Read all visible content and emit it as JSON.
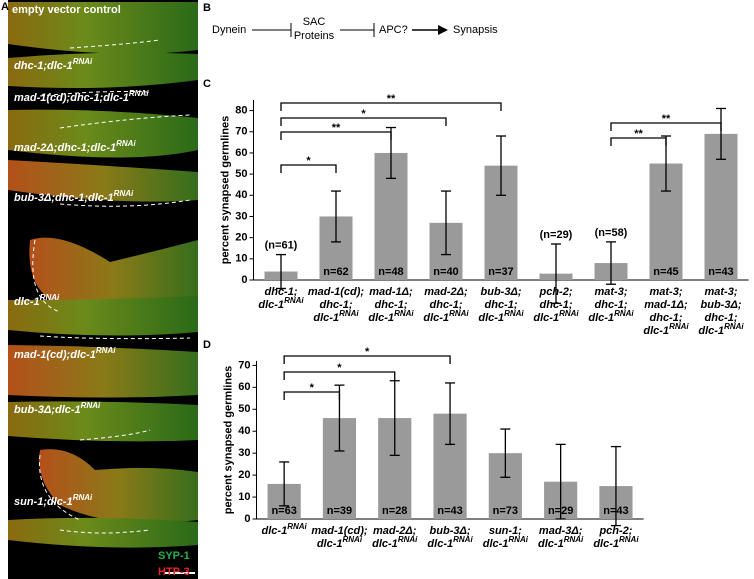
{
  "panel_a": {
    "letter": "A",
    "labels": [
      {
        "text": "empty vector control",
        "sup": ""
      },
      {
        "text": "dhc-1;dlc-1",
        "sup": "RNAi"
      },
      {
        "text": "mad-1(cd);dhc-1;dlc-1",
        "sup": "RNAi"
      },
      {
        "text": "mad-2Δ;dhc-1;dlc-1",
        "sup": "RNAi"
      },
      {
        "text": "bub-3Δ;dhc-1;dlc-1",
        "sup": "RNAi"
      },
      {
        "text": "dlc-1",
        "sup": "RNAi"
      },
      {
        "text": "mad-1(cd);dlc-1",
        "sup": "RNAi"
      },
      {
        "text": "bub-3Δ;dlc-1",
        "sup": "RNAi"
      },
      {
        "text": "sun-1;dlc-1",
        "sup": "RNAi"
      }
    ],
    "legend": [
      {
        "text": "SYP-1",
        "color": "#22b24c"
      },
      {
        "text": "HTP-3",
        "color": "#e8262a"
      }
    ]
  },
  "panel_b": {
    "letter": "B",
    "nodes": [
      "Dynein",
      "SAC",
      "Proteins",
      "APC?",
      "Synapsis"
    ]
  },
  "chart_data": [
    {
      "type": "bar",
      "letter": "C",
      "y_label": "percent synapsed germlines",
      "color": "#9a9a9a",
      "categories": [
        {
          "lines": [
            "dhc-1;",
            "dlc-1"
          ],
          "sup": "RNAi"
        },
        {
          "lines": [
            "mad-1(cd);",
            "dhc-1;",
            "dlc-1"
          ],
          "sup": "RNAi"
        },
        {
          "lines": [
            "mad-1Δ;",
            "dhc-1;",
            "dlc-1"
          ],
          "sup": "RNAi"
        },
        {
          "lines": [
            "mad-2Δ;",
            "dhc-1;",
            "dlc-1"
          ],
          "sup": "RNAi"
        },
        {
          "lines": [
            "bub-3Δ;",
            "dhc-1;",
            "dlc-1"
          ],
          "sup": "RNAi"
        },
        {
          "lines": [
            "pch-2;",
            "dhc-1;",
            "dlc-1"
          ],
          "sup": "RNAi"
        },
        {
          "lines": [
            "mat-3;",
            "dhc-1;",
            "dlc-1"
          ],
          "sup": "RNAi"
        },
        {
          "lines": [
            "mat-3;",
            "mad-1Δ;",
            "dhc-1;",
            "dlc-1"
          ],
          "sup": "RNAi"
        },
        {
          "lines": [
            "mat-3;",
            "bub-3Δ;",
            "dhc-1;",
            "dlc-1"
          ],
          "sup": "RNAi"
        }
      ],
      "values": [
        4,
        30,
        60,
        27,
        54,
        3,
        8,
        55,
        69
      ],
      "errors": [
        8,
        12,
        12,
        15,
        14,
        14,
        10,
        13,
        12
      ],
      "n_labels": [
        "(n=61)",
        "n=62",
        "n=48",
        "n=40",
        "n=37",
        "(n=29)",
        "(n=58)",
        "n=45",
        "n=43"
      ],
      "ylim": [
        0,
        85
      ],
      "yticks": [
        0,
        10,
        20,
        30,
        40,
        50,
        60,
        70,
        80
      ],
      "significance": [
        {
          "from": 0,
          "to": 1,
          "label": "*"
        },
        {
          "from": 0,
          "to": 3,
          "label": "*"
        },
        {
          "from": 0,
          "to": 2,
          "label": "**"
        },
        {
          "from": 0,
          "to": 4,
          "label": "**"
        },
        {
          "from": 6,
          "to": 7,
          "label": "**"
        },
        {
          "from": 6,
          "to": 8,
          "label": "**"
        }
      ]
    },
    {
      "type": "bar",
      "letter": "D",
      "y_label": "percent synapsed germlines",
      "color": "#9a9a9a",
      "categories": [
        {
          "lines": [
            "dlc-1"
          ],
          "sup": "RNAi"
        },
        {
          "lines": [
            "mad-1(cd);",
            "dlc-1"
          ],
          "sup": "RNAi"
        },
        {
          "lines": [
            "mad-2Δ;",
            "dlc-1"
          ],
          "sup": "RNAi"
        },
        {
          "lines": [
            "bub-3Δ;",
            "dlc-1"
          ],
          "sup": "RNAi"
        },
        {
          "lines": [
            "sun-1;",
            "dlc-1"
          ],
          "sup": "RNAi"
        },
        {
          "lines": [
            "mad-3Δ;",
            "dlc-1"
          ],
          "sup": "RNAi"
        },
        {
          "lines": [
            "pch-2;",
            "dlc-1"
          ],
          "sup": "RNAi"
        }
      ],
      "values": [
        16,
        46,
        46,
        48,
        30,
        17,
        15
      ],
      "errors": [
        10,
        15,
        17,
        14,
        11,
        17,
        18
      ],
      "n_labels": [
        "n=63",
        "n=39",
        "n=28",
        "n=43",
        "n=73",
        "n=29",
        "n=43"
      ],
      "ylim": [
        0,
        72
      ],
      "yticks": [
        0,
        10,
        20,
        30,
        40,
        50,
        60,
        70
      ],
      "significance": [
        {
          "from": 0,
          "to": 1,
          "label": "*"
        },
        {
          "from": 0,
          "to": 2,
          "label": "*"
        },
        {
          "from": 0,
          "to": 3,
          "label": "*"
        }
      ]
    }
  ]
}
